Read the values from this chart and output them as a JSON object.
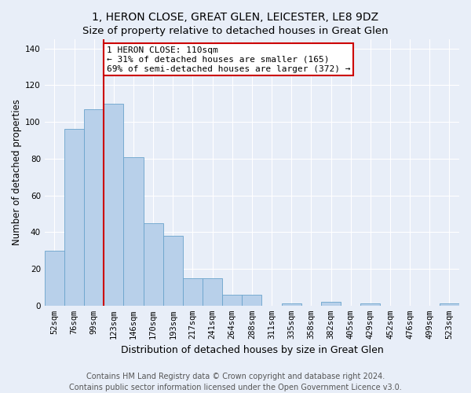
{
  "title": "1, HERON CLOSE, GREAT GLEN, LEICESTER, LE8 9DZ",
  "subtitle": "Size of property relative to detached houses in Great Glen",
  "xlabel": "Distribution of detached houses by size in Great Glen",
  "ylabel": "Number of detached properties",
  "bar_labels": [
    "52sqm",
    "76sqm",
    "99sqm",
    "123sqm",
    "146sqm",
    "170sqm",
    "193sqm",
    "217sqm",
    "241sqm",
    "264sqm",
    "288sqm",
    "311sqm",
    "335sqm",
    "358sqm",
    "382sqm",
    "405sqm",
    "429sqm",
    "452sqm",
    "476sqm",
    "499sqm",
    "523sqm"
  ],
  "bar_values": [
    30,
    96,
    107,
    110,
    81,
    45,
    38,
    15,
    15,
    6,
    6,
    0,
    1,
    0,
    2,
    0,
    1,
    0,
    0,
    0,
    1
  ],
  "bar_color": "#b8d0ea",
  "bar_edge_color": "#6aa3cc",
  "vline_x": 2.5,
  "vline_color": "#cc0000",
  "annotation_text": "1 HERON CLOSE: 110sqm\n← 31% of detached houses are smaller (165)\n69% of semi-detached houses are larger (372) →",
  "annotation_box_color": "#ffffff",
  "annotation_box_edge": "#cc0000",
  "ylim": [
    0,
    145
  ],
  "yticks": [
    0,
    20,
    40,
    60,
    80,
    100,
    120,
    140
  ],
  "bg_color": "#e8eef8",
  "plot_bg_color": "#e8eef8",
  "footer_line1": "Contains HM Land Registry data © Crown copyright and database right 2024.",
  "footer_line2": "Contains public sector information licensed under the Open Government Licence v3.0.",
  "title_fontsize": 10,
  "subtitle_fontsize": 9.5,
  "xlabel_fontsize": 9,
  "ylabel_fontsize": 8.5,
  "tick_fontsize": 7.5,
  "annotation_fontsize": 8,
  "footer_fontsize": 7
}
